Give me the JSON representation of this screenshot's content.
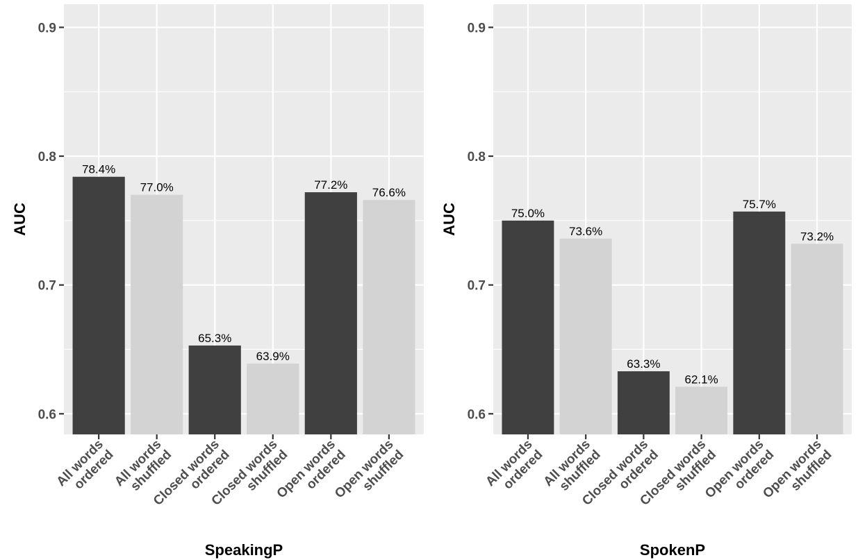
{
  "chart_data": [
    {
      "type": "bar",
      "xlabel": "SpeakingP",
      "ylabel": "AUC",
      "ylim": [
        0.584,
        0.918
      ],
      "yticks": [
        "0.6",
        "0.7",
        "0.8",
        "0.9"
      ],
      "grid": true,
      "categories": [
        [
          "All words",
          "ordered"
        ],
        [
          "All words",
          "shuffled"
        ],
        [
          "Closed words",
          "ordered"
        ],
        [
          "Closed words",
          "shuffled"
        ],
        [
          "Open words",
          "ordered"
        ],
        [
          "Open words",
          "shuffled"
        ]
      ],
      "values": [
        0.784,
        0.77,
        0.653,
        0.639,
        0.772,
        0.766
      ],
      "value_labels": [
        "78.4%",
        "77.0%",
        "65.3%",
        "63.9%",
        "77.2%",
        "76.6%"
      ],
      "bar_colors": [
        "#404040",
        "#d3d3d3",
        "#404040",
        "#d3d3d3",
        "#404040",
        "#d3d3d3"
      ]
    },
    {
      "type": "bar",
      "xlabel": "SpokenP",
      "ylabel": "AUC",
      "ylim": [
        0.584,
        0.918
      ],
      "yticks": [
        "0.6",
        "0.7",
        "0.8",
        "0.9"
      ],
      "grid": true,
      "categories": [
        [
          "All words",
          "ordered"
        ],
        [
          "All words",
          "shuffled"
        ],
        [
          "Closed words",
          "ordered"
        ],
        [
          "Closed words",
          "shuffled"
        ],
        [
          "Open words",
          "ordered"
        ],
        [
          "Open words",
          "shuffled"
        ]
      ],
      "values": [
        0.75,
        0.736,
        0.633,
        0.621,
        0.757,
        0.732
      ],
      "value_labels": [
        "75.0%",
        "73.6%",
        "63.3%",
        "62.1%",
        "75.7%",
        "73.2%"
      ],
      "bar_colors": [
        "#404040",
        "#d3d3d3",
        "#404040",
        "#d3d3d3",
        "#404040",
        "#d3d3d3"
      ]
    }
  ]
}
